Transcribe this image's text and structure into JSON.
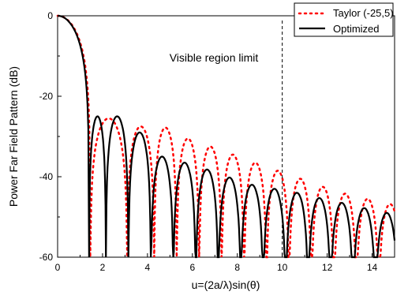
{
  "chart_data": {
    "type": "line",
    "xlabel": "u=(2a/λ)sin(θ)",
    "ylabel": "Power Far Field Pattern (dB)",
    "xlim": [
      0,
      15
    ],
    "ylim": [
      -60,
      0
    ],
    "xticks": [
      0,
      2,
      4,
      6,
      8,
      10,
      12,
      14
    ],
    "yticks": [
      0,
      -20,
      -40,
      -60
    ],
    "xtick_labels": [
      "0",
      "2",
      "4",
      "6",
      "8",
      "10",
      "12",
      "14"
    ],
    "ytick_labels": [
      "0",
      "-20",
      "-40",
      "-60"
    ],
    "grid": false,
    "legend_position": "top-right",
    "annotations": [
      {
        "text": "Visible region limit",
        "x": 10,
        "style": "dashed vertical line"
      }
    ],
    "series": [
      {
        "name": "Taylor (-25,5)",
        "style": "dotted",
        "color": "#ff0000",
        "nulls": [
          0,
          1.45,
          3.1,
          4.3,
          5.3,
          6.3,
          7.3,
          8.3,
          9.3,
          10.3,
          11.3,
          12.3,
          13.3,
          14.3,
          15.3
        ],
        "peaks": [
          0,
          -25.5,
          -27.5,
          -27.8,
          -30.5,
          -32.5,
          -34.5,
          -36.5,
          -38.5,
          -40.5,
          -42.5,
          -44.2,
          -45.5,
          -46.8,
          -47.8
        ]
      },
      {
        "name": "Optimized",
        "style": "solid",
        "color": "#000000",
        "nulls": [
          0,
          1.4,
          2.15,
          3.15,
          4.15,
          5.15,
          6.15,
          7.15,
          8.15,
          9.15,
          10.15,
          11.15,
          12.15,
          13.15,
          14.15,
          15.15
        ],
        "peaks": [
          0,
          -25,
          -25,
          -29,
          -35,
          -36.5,
          -38.2,
          -40.2,
          -42,
          -43,
          -44,
          -45.3,
          -46.5,
          -47.8,
          -49
        ]
      }
    ]
  }
}
